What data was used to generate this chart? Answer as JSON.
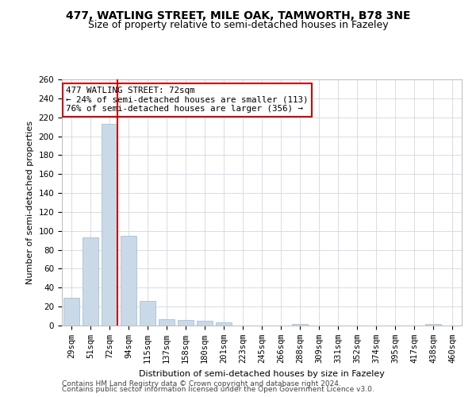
{
  "title1": "477, WATLING STREET, MILE OAK, TAMWORTH, B78 3NE",
  "title2": "Size of property relative to semi-detached houses in Fazeley",
  "xlabel": "Distribution of semi-detached houses by size in Fazeley",
  "ylabel": "Number of semi-detached properties",
  "categories": [
    "29sqm",
    "51sqm",
    "72sqm",
    "94sqm",
    "115sqm",
    "137sqm",
    "158sqm",
    "180sqm",
    "201sqm",
    "223sqm",
    "245sqm",
    "266sqm",
    "288sqm",
    "309sqm",
    "331sqm",
    "352sqm",
    "374sqm",
    "395sqm",
    "417sqm",
    "438sqm",
    "460sqm"
  ],
  "values": [
    29,
    93,
    213,
    95,
    26,
    7,
    6,
    5,
    3,
    0,
    0,
    0,
    2,
    0,
    0,
    0,
    0,
    0,
    0,
    2,
    0
  ],
  "bar_color": "#c9d9e8",
  "bar_edgecolor": "#a0b8cc",
  "highlight_line_color": "#cc0000",
  "annotation_text": "477 WATLING STREET: 72sqm\n← 24% of semi-detached houses are smaller (113)\n76% of semi-detached houses are larger (356) →",
  "annotation_box_edgecolor": "#cc0000",
  "annotation_box_facecolor": "#ffffff",
  "ylim": [
    0,
    260
  ],
  "yticks": [
    0,
    20,
    40,
    60,
    80,
    100,
    120,
    140,
    160,
    180,
    200,
    220,
    240,
    260
  ],
  "footer1": "Contains HM Land Registry data © Crown copyright and database right 2024.",
  "footer2": "Contains public sector information licensed under the Open Government Licence v3.0.",
  "bg_color": "#ffffff",
  "grid_color": "#d0d8e4",
  "title1_fontsize": 10,
  "title2_fontsize": 9,
  "axis_fontsize": 8,
  "tick_fontsize": 7.5,
  "footer_fontsize": 6.5
}
